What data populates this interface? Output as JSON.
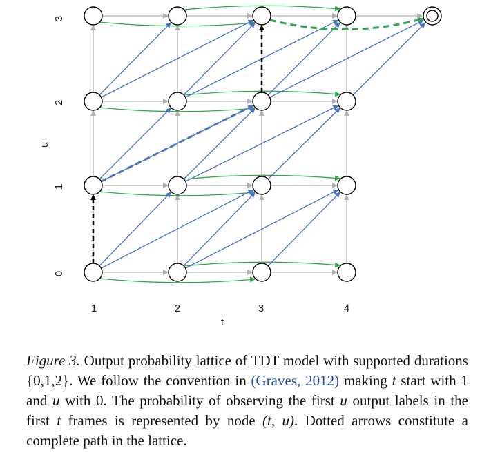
{
  "diagram": {
    "t_ticks": [
      "1",
      "2",
      "3",
      "4"
    ],
    "u_ticks": [
      "0",
      "1",
      "2",
      "3"
    ],
    "t_axis_label": "t",
    "u_axis_label": "u",
    "colors": {
      "blank_edge": "#2ca84a",
      "label_edge": "#4472c4",
      "grid_edge": "#b0b0b0",
      "path_emit": "#000000",
      "path_label": "#4472c4",
      "path_blank": "#2ca84a",
      "node_stroke": "#000000"
    }
  },
  "caption": {
    "figure_label": "Figure 3.",
    "p1": " Output probability lattice of TDT model with supported durations {0,1,2}. We follow the convention in ",
    "citation": "(Graves, 2012)",
    "p2": " making ",
    "var_t": "t",
    "p3": " start with 1 and ",
    "var_u": "u",
    "p4": " with 0. The probability of observing the first ",
    "var_u2": "u",
    "p5": " output labels in the first ",
    "var_t2": "t",
    "p6": " frames is represented by node ",
    "node_tu": "(t, u)",
    "p7": ". Dotted arrows constitute a complete path in the lattice."
  }
}
